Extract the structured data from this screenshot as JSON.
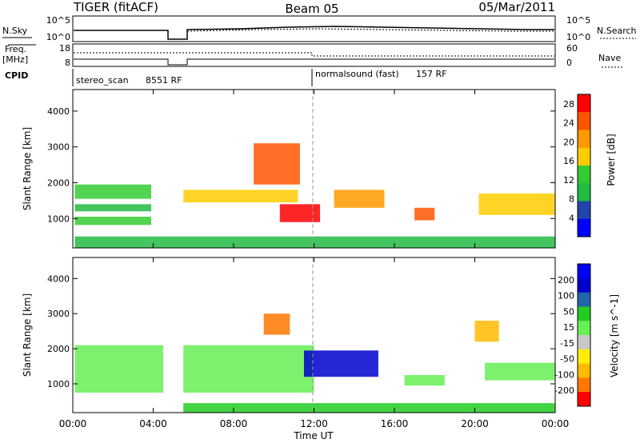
{
  "header": {
    "left_title": "TIGER (fitACF)",
    "center_title": "Beam 05",
    "date": "05/Mar/2011"
  },
  "summary_panels": {
    "nsky": {
      "label": "N.Sky",
      "ticks": [
        "10^5",
        "10^0"
      ]
    },
    "nsearch": {
      "label": "N.Search",
      "ticks": [
        "10^5",
        "10^0"
      ]
    },
    "freq": {
      "label": "Freq.",
      "unit": "[MHz]",
      "ticks": [
        "18",
        "8"
      ]
    },
    "nave": {
      "label": "Nave",
      "ticks": [
        "60",
        "0"
      ]
    },
    "cpid": {
      "label": "CPID"
    }
  },
  "cpid_segments": [
    {
      "name": "stereo_scan",
      "id": "8551 RF"
    },
    {
      "name": "normalsound (fast)",
      "id": "157 RF"
    }
  ],
  "x_axis": {
    "label": "Time UT",
    "ticks": [
      "00:00",
      "04:00",
      "08:00",
      "12:00",
      "16:00",
      "20:00",
      "00:00"
    ]
  },
  "colors": {
    "power_scale": [
      "#0000ff",
      "#2244aa",
      "#22bb44",
      "#33cc33",
      "#ffcc00",
      "#ff9900",
      "#ff5500",
      "#ff0000"
    ],
    "velocity_scale": [
      "#0000ff",
      "#0000cc",
      "#2266aa",
      "#22cc22",
      "#66ee55",
      "#c8c8c8",
      "#ffee00",
      "#ffbb00",
      "#ff7700",
      "#ff0000"
    ]
  },
  "chart_data": [
    {
      "type": "heatmap",
      "panel": "power",
      "ylabel": "Slant Range [km]",
      "yticks": [
        "1000",
        "2000",
        "3000",
        "4000"
      ],
      "ylim": [
        180,
        4600
      ],
      "xlim_hours": [
        0,
        24
      ],
      "colorbar": {
        "label": "Power [dB]",
        "ticks": [
          "4",
          "8",
          "12",
          "16",
          "20",
          "24",
          "28"
        ],
        "range": [
          0,
          30
        ]
      },
      "regions": [
        {
          "t0": 0.1,
          "t1": 3.9,
          "r0": 1550,
          "r1": 1950,
          "value": 14
        },
        {
          "t0": 0.1,
          "t1": 3.9,
          "r0": 1200,
          "r1": 1400,
          "value": 10
        },
        {
          "t0": 0.1,
          "t1": 3.9,
          "r0": 820,
          "r1": 1050,
          "value": 12
        },
        {
          "t0": 5.5,
          "t1": 11.2,
          "r0": 1450,
          "r1": 1800,
          "value": 18
        },
        {
          "t0": 9.0,
          "t1": 11.3,
          "r0": 1950,
          "r1": 3100,
          "value": 24
        },
        {
          "t0": 10.3,
          "t1": 12.3,
          "r0": 900,
          "r1": 1400,
          "value": 28
        },
        {
          "t0": 13.0,
          "t1": 15.5,
          "r0": 1300,
          "r1": 1800,
          "value": 22
        },
        {
          "t0": 17.0,
          "t1": 18.0,
          "r0": 950,
          "r1": 1300,
          "value": 26
        },
        {
          "t0": 20.2,
          "t1": 24.0,
          "r0": 1100,
          "r1": 1700,
          "value": 16
        },
        {
          "t0": 0.1,
          "t1": 24.0,
          "r0": 180,
          "r1": 500,
          "value": 10
        }
      ]
    },
    {
      "type": "heatmap",
      "panel": "velocity",
      "ylabel": "Slant Range [km]",
      "yticks": [
        "1000",
        "2000",
        "3000",
        "4000"
      ],
      "ylim": [
        180,
        4600
      ],
      "xlim_hours": [
        0,
        24
      ],
      "colorbar": {
        "label": "Velocity [m s^-1]",
        "ticks": [
          "200",
          "100",
          "50",
          "15",
          "-15",
          "-50",
          "-100",
          "-200"
        ],
        "range": [
          -250,
          250
        ]
      },
      "regions": [
        {
          "t0": 0.1,
          "t1": 4.5,
          "r0": 750,
          "r1": 2100,
          "value": 0
        },
        {
          "t0": 5.5,
          "t1": 12.0,
          "r0": 750,
          "r1": 2100,
          "value": 0
        },
        {
          "t0": 9.5,
          "t1": 10.8,
          "r0": 2400,
          "r1": 3000,
          "value": -180
        },
        {
          "t0": 11.5,
          "t1": 15.2,
          "r0": 1200,
          "r1": 1950,
          "value": 150
        },
        {
          "t0": 16.5,
          "t1": 18.5,
          "r0": 950,
          "r1": 1250,
          "value": 0
        },
        {
          "t0": 20.0,
          "t1": 21.2,
          "r0": 2200,
          "r1": 2800,
          "value": -150
        },
        {
          "t0": 20.5,
          "t1": 24.0,
          "r0": 1100,
          "r1": 1600,
          "value": 0
        },
        {
          "t0": 5.5,
          "t1": 24.0,
          "r0": 180,
          "r1": 450,
          "value": 60
        }
      ]
    }
  ]
}
